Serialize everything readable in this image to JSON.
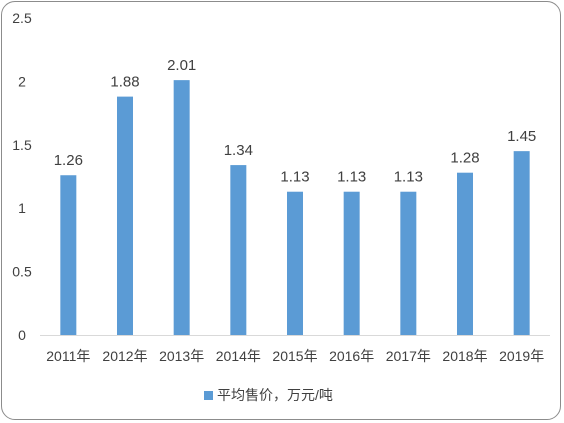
{
  "chart_data": {
    "type": "bar",
    "categories": [
      "2011年",
      "2012年",
      "2013年",
      "2014年",
      "2015年",
      "2016年",
      "2017年",
      "2018年",
      "2019年"
    ],
    "series": [
      {
        "name": "平均售价，万元/吨",
        "values": [
          1.26,
          1.88,
          2.01,
          1.34,
          1.13,
          1.13,
          1.13,
          1.28,
          1.45
        ],
        "color": "#5b9bd5"
      }
    ],
    "data_labels": [
      "1.26",
      "1.88",
      "2.01",
      "1.34",
      "1.13",
      "1.13",
      "1.13",
      "1.28",
      "1.45"
    ],
    "y_ticks": [
      "0",
      "0.5",
      "1",
      "1.5",
      "2",
      "2.5"
    ],
    "ylim": [
      0,
      2.5
    ],
    "grid": false,
    "legend_position": "bottom",
    "title": "",
    "xlabel": "",
    "ylabel": ""
  }
}
